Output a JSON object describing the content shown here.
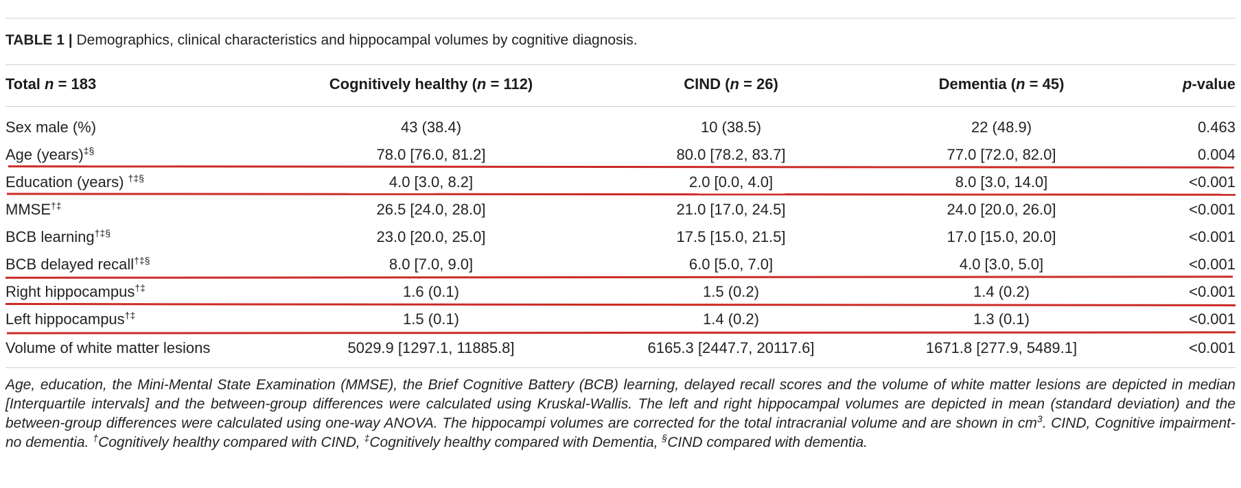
{
  "caption": {
    "label": "TABLE 1 |",
    "text": " Demographics, clinical characteristics and hippocampal volumes by cognitive diagnosis."
  },
  "columns": {
    "total": {
      "prefix": "Total ",
      "n": "n",
      "suffix": " = 183"
    },
    "healthy": {
      "prefix": "Cognitively healthy (",
      "n": "n",
      "suffix": " = 112)"
    },
    "cind": {
      "prefix": "CIND (",
      "n": "n",
      "suffix": " = 26)"
    },
    "dementia": {
      "prefix": "Dementia (",
      "n": "n",
      "suffix": " = 45)"
    },
    "pvalue": {
      "p": "p",
      "suffix": "-value"
    }
  },
  "rows": [
    {
      "label": "Sex male (%)",
      "sup": "",
      "healthy": "43 (38.4)",
      "cind": "10 (38.5)",
      "dementia": "22 (48.9)",
      "p": "0.463"
    },
    {
      "label": "Age (years)",
      "sup": "‡§",
      "healthy": "78.0 [76.0, 81.2]",
      "cind": "80.0 [78.2, 83.7]",
      "dementia": "77.0 [72.0, 82.0]",
      "p": "0.004"
    },
    {
      "label": "Education (years) ",
      "sup": "†‡§",
      "healthy": "4.0 [3.0, 8.2]",
      "cind": "2.0 [0.0, 4.0]",
      "dementia": "8.0 [3.0, 14.0]",
      "p": "<0.001"
    },
    {
      "label": "MMSE",
      "sup": "†‡",
      "healthy": "26.5 [24.0, 28.0]",
      "cind": "21.0 [17.0, 24.5]",
      "dementia": "24.0 [20.0, 26.0]",
      "p": "<0.001"
    },
    {
      "label": "BCB learning",
      "sup": "†‡§",
      "healthy": "23.0 [20.0, 25.0]",
      "cind": "17.5 [15.0, 21.5]",
      "dementia": "17.0 [15.0, 20.0]",
      "p": "<0.001"
    },
    {
      "label": "BCB delayed recall",
      "sup": "†‡§",
      "healthy": "8.0 [7.0, 9.0]",
      "cind": "6.0 [5.0, 7.0]",
      "dementia": "4.0 [3.0, 5.0]",
      "p": "<0.001"
    },
    {
      "label": "Right hippocampus",
      "sup": "†‡",
      "healthy": "1.6 (0.1)",
      "cind": "1.5 (0.2)",
      "dementia": "1.4 (0.2)",
      "p": "<0.001"
    },
    {
      "label": "Left hippocampus",
      "sup": "†‡",
      "healthy": "1.5 (0.1)",
      "cind": "1.4 (0.2)",
      "dementia": "1.3 (0.1)",
      "p": "<0.001"
    },
    {
      "label": "Volume of white matter lesions",
      "sup": "",
      "healthy": "5029.9 [1297.1, 11885.8]",
      "cind": "6165.3 [2447.7, 20117.6]",
      "dementia": "1671.8 [277.9, 5489.1]",
      "p": "<0.001"
    }
  ],
  "footnote": {
    "part1": "Age, education, the Mini-Mental State Examination (MMSE), the Brief Cognitive Battery (BCB) learning, delayed recall scores and the volume of white matter lesions are depicted in median [Interquartile intervals] and the between-group differences were calculated using Kruskal-Wallis. The left and right hippocampal volumes are depicted in mean (standard deviation) and the between-group differences were calculated using one-way ANOVA. The hippocampi volumes are corrected for the total intracranial volume and are shown in cm",
    "sup1": "3",
    "part2": ". CIND, Cognitive impairment-no dementia. ",
    "sup2": "†",
    "part3": "Cognitively healthy compared with CIND, ",
    "sup3": "‡",
    "part4": "Cognitively healthy compared with Dementia, ",
    "sup4": "§",
    "part5": "CIND compared with dementia."
  },
  "colors": {
    "highlight": "#cc2a24",
    "rule": "#cfcfcf",
    "text": "#222222"
  }
}
